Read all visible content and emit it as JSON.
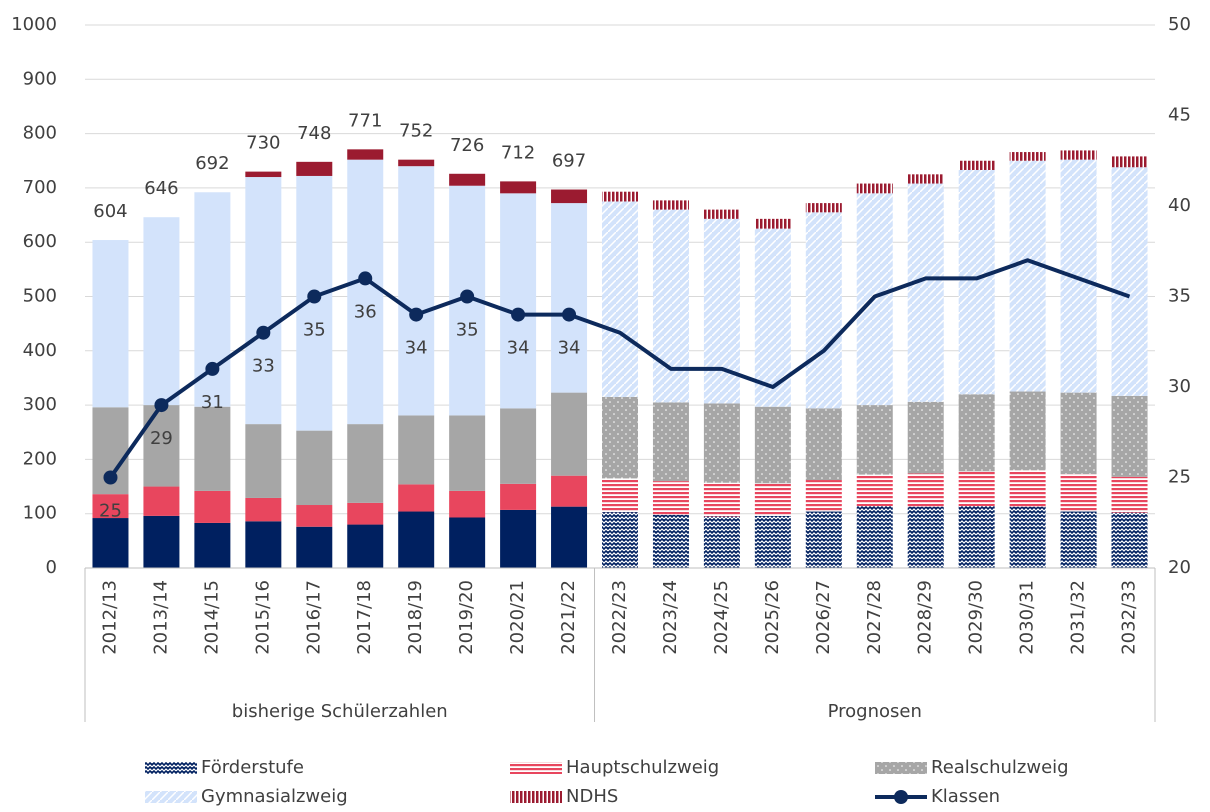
{
  "chart_data": {
    "type": "bar",
    "stacked": true,
    "categories": [
      "2012/13",
      "2013/14",
      "2014/15",
      "2015/16",
      "2016/17",
      "2017/18",
      "2018/19",
      "2019/20",
      "2020/21",
      "2021/22",
      "2022/23",
      "2023/24",
      "2024/25",
      "2025/26",
      "2026/27",
      "2027/28",
      "2028/29",
      "2029/30",
      "2030/31",
      "2031/32",
      "2032/33"
    ],
    "groups": [
      {
        "name": "bisherige Schülerzahlen",
        "span": [
          0,
          9
        ]
      },
      {
        "name": "Prognosen",
        "span": [
          10,
          20
        ]
      }
    ],
    "series": [
      {
        "name": "Förderstufe",
        "color": "#002060",
        "values": [
          92,
          96,
          83,
          86,
          76,
          80,
          104,
          93,
          107,
          113,
          103,
          98,
          95,
          96,
          104,
          114,
          113,
          114,
          113,
          104,
          102
        ]
      },
      {
        "name": "Hauptschulzweig",
        "color": "#e8465e",
        "values": [
          44,
          54,
          59,
          43,
          40,
          40,
          50,
          49,
          48,
          57,
          62,
          62,
          62,
          60,
          58,
          58,
          61,
          64,
          67,
          69,
          66
        ]
      },
      {
        "name": "Realschulzweig",
        "color": "#a6a6a6",
        "values": [
          160,
          150,
          155,
          136,
          137,
          145,
          127,
          139,
          139,
          153,
          150,
          145,
          146,
          141,
          132,
          128,
          132,
          142,
          145,
          150,
          149
        ]
      },
      {
        "name": "Gymnasialzweig",
        "color": "#d3e3fb",
        "values": [
          308,
          346,
          395,
          455,
          469,
          487,
          459,
          423,
          396,
          349,
          360,
          355,
          340,
          328,
          361,
          390,
          402,
          413,
          425,
          429,
          421
        ]
      },
      {
        "name": "NDHS",
        "color": "#9b1b30",
        "values": [
          0,
          0,
          0,
          10,
          26,
          19,
          12,
          22,
          22,
          25,
          18,
          17,
          17,
          18,
          17,
          18,
          17,
          17,
          16,
          17,
          20
        ]
      },
      {
        "name": "Klassen",
        "type": "line",
        "axis": "y2",
        "color": "#0d2a5c",
        "values": [
          25,
          29,
          31,
          33,
          35,
          36,
          34,
          35,
          34,
          34,
          33,
          31,
          31,
          30,
          32,
          35,
          36,
          36,
          37,
          36,
          35
        ],
        "value_labels": [
          "25",
          "29",
          "31",
          "33",
          "35",
          "36",
          "34",
          "35",
          "34",
          "34",
          null,
          null,
          null,
          null,
          null,
          null,
          null,
          null,
          null,
          null,
          null
        ]
      }
    ],
    "totals": [
      604,
      646,
      692,
      730,
      748,
      771,
      752,
      726,
      712,
      697,
      null,
      null,
      null,
      null,
      null,
      null,
      null,
      null,
      null,
      null,
      null
    ],
    "ylim": [
      0,
      1000
    ],
    "yticks": [
      0,
      100,
      200,
      300,
      400,
      500,
      600,
      700,
      800,
      900,
      1000
    ],
    "y2lim": [
      20,
      50
    ],
    "y2ticks": [
      20,
      25,
      30,
      35,
      40,
      45,
      50
    ],
    "grid": true,
    "legend": "bottom"
  }
}
